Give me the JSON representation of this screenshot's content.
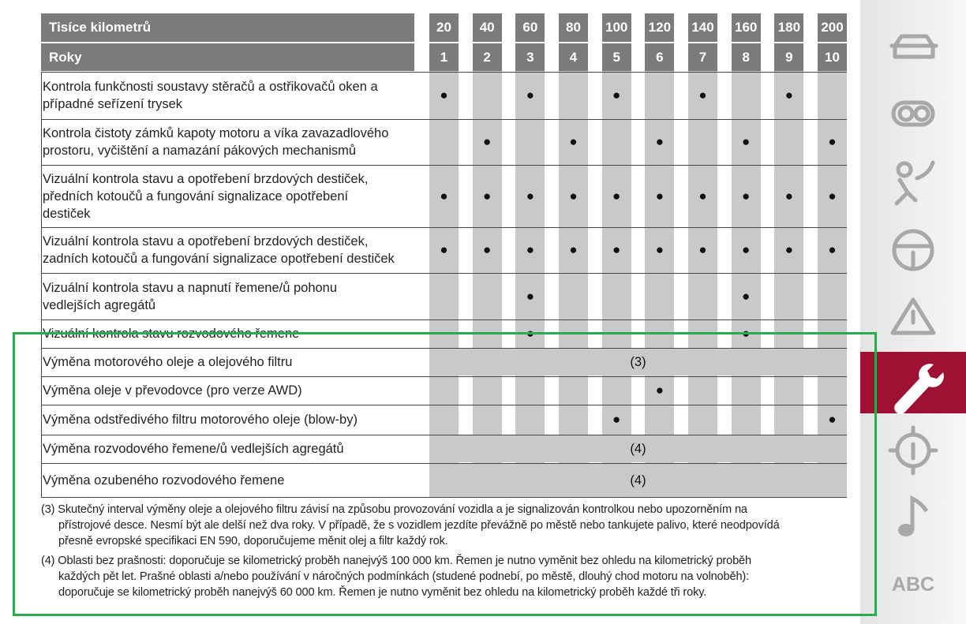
{
  "table": {
    "header": {
      "label_km": "Tisíce kilometrů",
      "label_years": "Roky",
      "km": [
        20,
        40,
        60,
        80,
        100,
        120,
        140,
        160,
        180,
        200
      ],
      "years": [
        1,
        2,
        3,
        4,
        5,
        6,
        7,
        8,
        9,
        10
      ]
    },
    "rows": [
      {
        "label": "Kontrola funkčnosti soustavy stěračů a ostřikovačů oken a\npřípadné seřízení trysek",
        "cells": [
          "●",
          null,
          "●",
          null,
          "●",
          null,
          "●",
          null,
          "●",
          null
        ]
      },
      {
        "label": "Kontrola čistoty zámků kapoty motoru a víka zavazadlového\nprostoru, vyčištění a namazání pákových mechanismů",
        "cells": [
          null,
          "●",
          null,
          "●",
          null,
          "●",
          null,
          "●",
          null,
          "●"
        ]
      },
      {
        "label": "Vizuální kontrola stavu a opotřebení brzdových destiček,\npředních kotoučů a fungování signalizace opotřebení\ndestiček",
        "cells": [
          "●",
          "●",
          "●",
          "●",
          "●",
          "●",
          "●",
          "●",
          "●",
          "●"
        ]
      },
      {
        "label": "Vizuální kontrola stavu a opotřebení brzdových destiček,\nzadních kotoučů a fungování signalizace opotřebení destiček",
        "cells": [
          "●",
          "●",
          "●",
          "●",
          "●",
          "●",
          "●",
          "●",
          "●",
          "●"
        ]
      },
      {
        "label": "Vizuální kontrola stavu a napnutí řemene/ů pohonu\nvedlejších agregátů",
        "cells": [
          null,
          null,
          "●",
          null,
          null,
          null,
          null,
          "●",
          null,
          null
        ]
      },
      {
        "label": "Vizuální kontrola stavu rozvodového řemene",
        "cells": [
          null,
          null,
          "●",
          null,
          null,
          null,
          null,
          "●",
          null,
          null
        ]
      },
      {
        "label": "Výměna motorového oleje a olejového filtru",
        "note": "(3)"
      },
      {
        "label": "Výměna oleje v převodovce (pro verze AWD)",
        "cells": [
          null,
          null,
          null,
          null,
          null,
          "●",
          null,
          null,
          null,
          null
        ]
      },
      {
        "label": "Výměna odstředivého filtru motorového oleje (blow-by)",
        "cells": [
          null,
          null,
          null,
          null,
          "●",
          null,
          null,
          null,
          null,
          "●"
        ]
      },
      {
        "label": "Výměna rozvodového řemene/ů vedlejších agregátů",
        "note": "(4)"
      },
      {
        "label": "Výměna ozubeného rozvodového řemene",
        "note": "(4)"
      }
    ]
  },
  "footnotes": [
    "(3) Skutečný interval výměny oleje a olejového filtru závisí na způsobu provozování vozidla a je signalizován kontrolkou nebo upozorněním na\npřístrojové desce. Nesmí být ale delší než dva roky. V případě, že s vozidlem jezdíte převážně po městě nebo tankujete palivo, které neodpovídá\npřesně evropské specifikaci EN 590, doporučujeme měnit olej a filtr každý rok.",
    "(4) Oblasti bez prašnosti: doporučuje se kilometrický proběh nanejvýš 100 000 km. Řemen je nutno vyměnit bez ohledu na kilometrický proběh\nkaždých pět let. Prašné oblasti a/nebo používání v náročných podmínkách (studené podnebí, po městě, dlouhý chod motoru na volnoběh):\ndoporučuje se kilometrický proběh nanejvýš 60 000 km. Řemen je nutno vyměnit bez ohledu na kilometrický proběh každé tři roky."
  ],
  "sidebar": {
    "abc": "ABC"
  }
}
